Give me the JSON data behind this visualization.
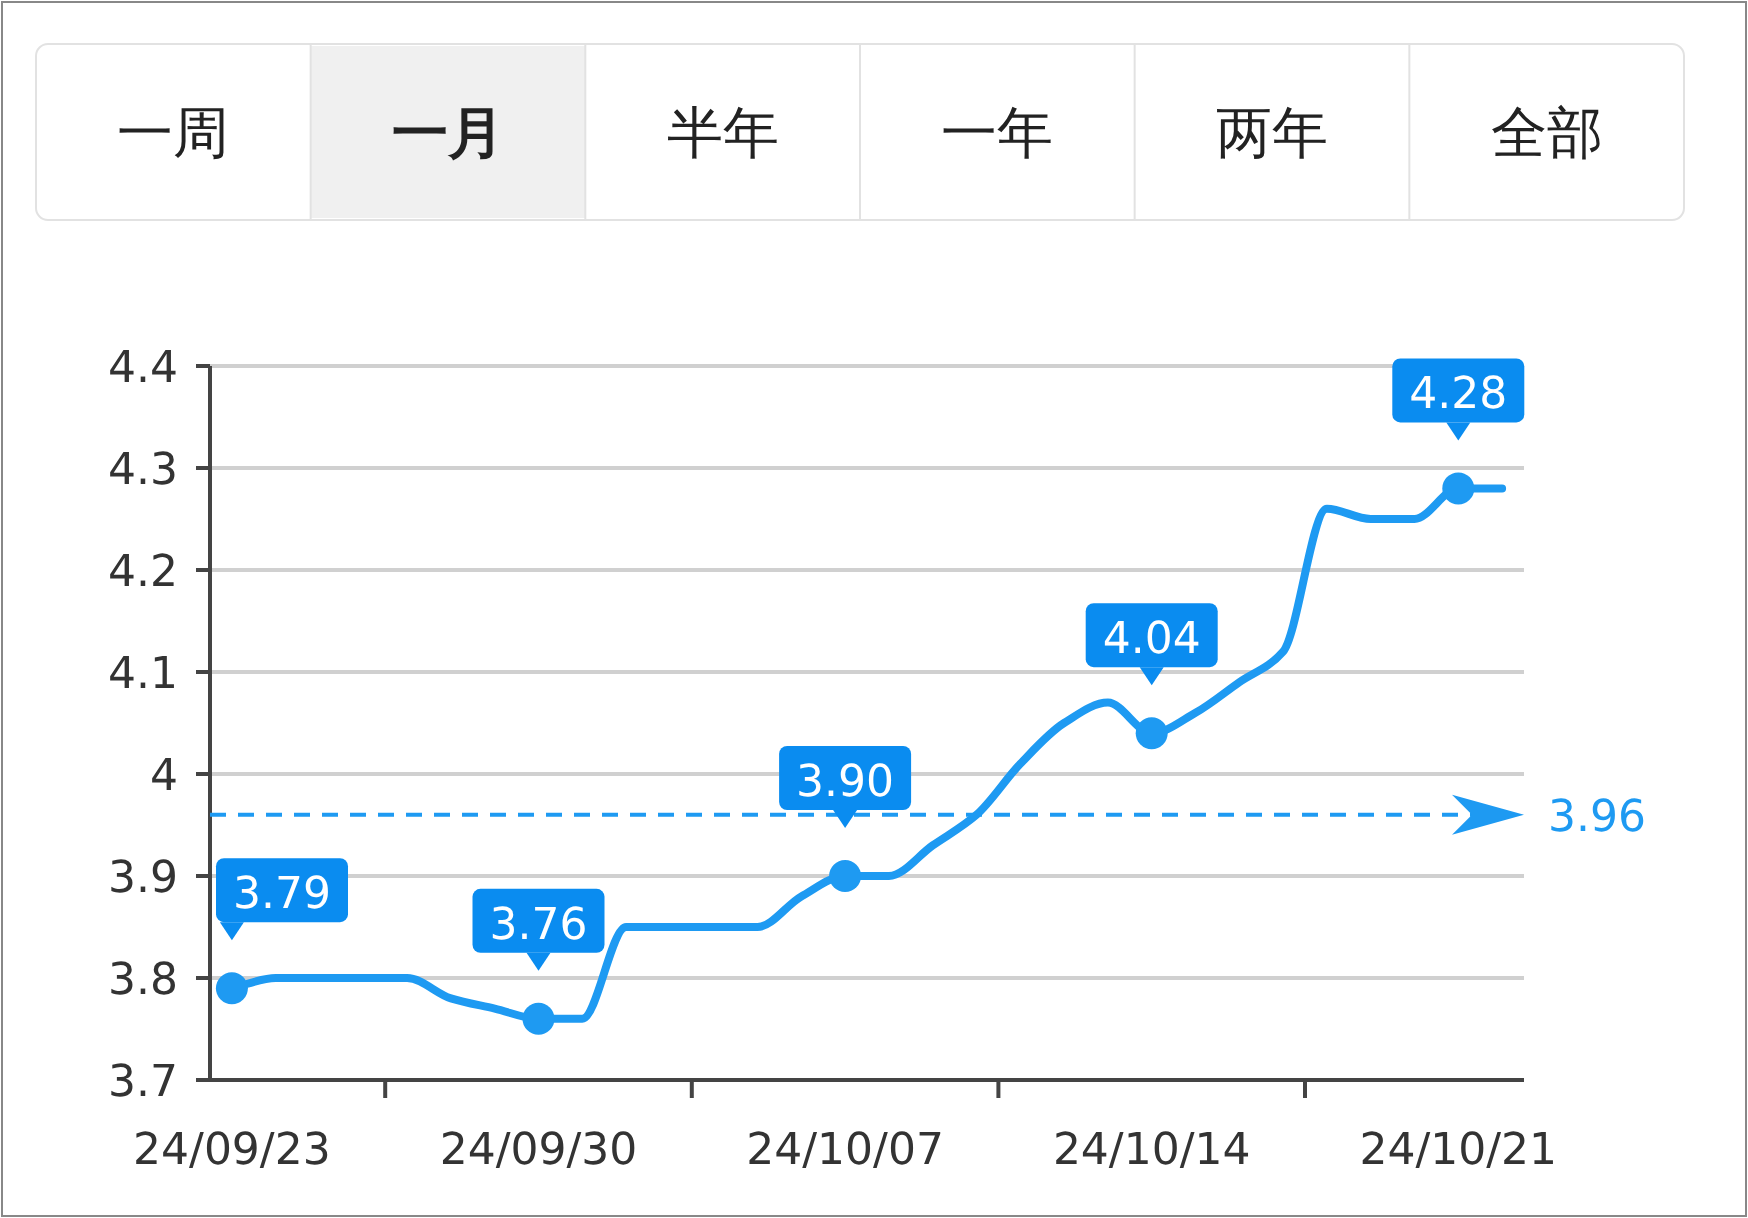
{
  "chart_data": {
    "type": "line",
    "annotations": [
      "一周",
      "一月",
      "半年",
      "一年",
      "两年",
      "全部"
    ],
    "categories": [
      "24/09/23",
      null,
      null,
      null,
      null,
      null,
      null,
      "24/09/30",
      null,
      null,
      null,
      null,
      null,
      null,
      "24/10/07",
      null,
      null,
      null,
      null,
      null,
      null,
      "24/10/14",
      null,
      null,
      null,
      null,
      null,
      null,
      "24/10/21",
      null
    ],
    "series": [
      {
        "color": "#1e9af2",
        "values": [
          3.79,
          3.8,
          3.8,
          3.8,
          3.8,
          3.78,
          3.77,
          3.76,
          3.76,
          3.85,
          3.85,
          3.85,
          3.85,
          3.88,
          3.9,
          3.9,
          3.93,
          3.96,
          4.01,
          4.05,
          4.07,
          4.04,
          4.06,
          4.09,
          4.12,
          4.26,
          4.25,
          4.25,
          4.28,
          4.28
        ],
        "value_labels": [
          "3.79",
          null,
          null,
          null,
          null,
          null,
          null,
          "3.76",
          null,
          null,
          null,
          null,
          null,
          null,
          "3.90",
          null,
          null,
          null,
          null,
          null,
          null,
          "4.04",
          null,
          null,
          null,
          null,
          null,
          null,
          "4.28",
          null
        ]
      }
    ],
    "ylim": [
      3.7,
      4.4
    ],
    "yticks": [
      3.7,
      3.8,
      {
        "value": 3.9,
        "label": "3.9"
      },
      {
        "value": 4.0,
        "label": "4"
      },
      4.1,
      4.2,
      4.3,
      4.4
    ],
    "grid": "y",
    "line_style": "solid",
    "ref_lines": [
      {
        "axis": "y",
        "value": 3.96,
        "label": "3.96",
        "color": "#1e9af2",
        "line_style": "dashed"
      }
    ]
  }
}
